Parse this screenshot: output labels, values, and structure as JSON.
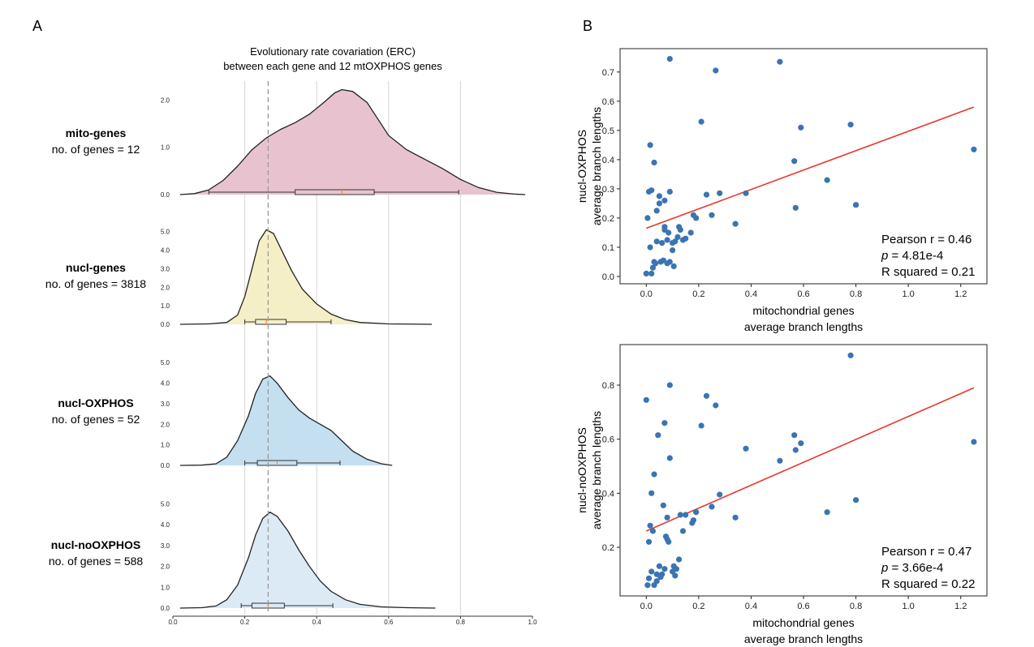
{
  "panel_a": {
    "letter": "A",
    "title_line1": "Evolutionary rate covariation (ERC)",
    "title_line2": "between each gene and 12 mtOXPHOS genes",
    "reference_line_x": 0.265
  },
  "panel_b": {
    "letter": "B"
  },
  "chart_data": [
    {
      "type": "violin",
      "title": "Evolutionary rate covariation (ERC) between each gene and 12 mtOXPHOS genes",
      "xlim": [
        0.0,
        1.0
      ],
      "x_ticks": [
        "0.0",
        "0.2",
        "0.4",
        "0.6",
        "0.8",
        "1.0"
      ],
      "x_tick_values": [
        0.0,
        0.2,
        0.4,
        0.6,
        0.8,
        1.0
      ],
      "grid_x": [
        0.2,
        0.4,
        0.6,
        0.8
      ],
      "groups": [
        {
          "name": "mito-genes",
          "count_label": "no. of genes = 12",
          "color": "#e8c3cf",
          "ylim": [
            0,
            2.4
          ],
          "y_ticks": [
            "0.0",
            "1.0",
            "2.0"
          ],
          "y_tick_values": [
            0,
            1,
            2
          ],
          "density": [
            [
              0.02,
              0
            ],
            [
              0.06,
              0.02
            ],
            [
              0.1,
              0.1
            ],
            [
              0.14,
              0.3
            ],
            [
              0.18,
              0.6
            ],
            [
              0.22,
              0.95
            ],
            [
              0.26,
              1.2
            ],
            [
              0.3,
              1.38
            ],
            [
              0.34,
              1.52
            ],
            [
              0.38,
              1.7
            ],
            [
              0.42,
              1.95
            ],
            [
              0.45,
              2.15
            ],
            [
              0.47,
              2.22
            ],
            [
              0.5,
              2.18
            ],
            [
              0.54,
              1.95
            ],
            [
              0.57,
              1.6
            ],
            [
              0.6,
              1.25
            ],
            [
              0.65,
              0.95
            ],
            [
              0.7,
              0.75
            ],
            [
              0.75,
              0.55
            ],
            [
              0.8,
              0.32
            ],
            [
              0.85,
              0.15
            ],
            [
              0.9,
              0.05
            ],
            [
              0.95,
              0.01
            ],
            [
              0.98,
              0
            ]
          ],
          "box": {
            "whisker_low": 0.1,
            "q1": 0.34,
            "median": 0.47,
            "q3": 0.56,
            "whisker_high": 0.795
          }
        },
        {
          "name": "nucl-genes",
          "count_label": "no. of genes = 3818",
          "color": "#f5efc8",
          "ylim": [
            0,
            5.6
          ],
          "y_ticks": [
            "0.0",
            "1.0",
            "2.0",
            "3.0",
            "4.0",
            "5.0"
          ],
          "y_tick_values": [
            0,
            1,
            2,
            3,
            4,
            5
          ],
          "density": [
            [
              0.02,
              0
            ],
            [
              0.1,
              0.02
            ],
            [
              0.15,
              0.1
            ],
            [
              0.18,
              0.5
            ],
            [
              0.2,
              1.5
            ],
            [
              0.22,
              3.0
            ],
            [
              0.24,
              4.5
            ],
            [
              0.26,
              5.1
            ],
            [
              0.28,
              4.9
            ],
            [
              0.3,
              4.1
            ],
            [
              0.33,
              2.9
            ],
            [
              0.36,
              1.9
            ],
            [
              0.4,
              1.1
            ],
            [
              0.44,
              0.55
            ],
            [
              0.48,
              0.25
            ],
            [
              0.52,
              0.1
            ],
            [
              0.6,
              0.02
            ],
            [
              0.72,
              0
            ]
          ],
          "box": {
            "whisker_low": 0.2,
            "q1": 0.23,
            "median": 0.26,
            "q3": 0.315,
            "whisker_high": 0.44
          }
        },
        {
          "name": "nucl-OXPHOS",
          "count_label": "no. of genes = 52",
          "color": "#c3dff0",
          "ylim": [
            0,
            5.6
          ],
          "y_ticks": [
            "0.0",
            "1.0",
            "2.0",
            "3.0",
            "4.0",
            "5.0"
          ],
          "y_tick_values": [
            0,
            1,
            2,
            3,
            4,
            5
          ],
          "density": [
            [
              0.02,
              0
            ],
            [
              0.08,
              0.01
            ],
            [
              0.12,
              0.08
            ],
            [
              0.15,
              0.4
            ],
            [
              0.18,
              1.2
            ],
            [
              0.21,
              2.4
            ],
            [
              0.23,
              3.5
            ],
            [
              0.25,
              4.2
            ],
            [
              0.27,
              4.35
            ],
            [
              0.29,
              4.0
            ],
            [
              0.32,
              3.3
            ],
            [
              0.35,
              2.7
            ],
            [
              0.38,
              2.3
            ],
            [
              0.41,
              2.0
            ],
            [
              0.44,
              1.7
            ],
            [
              0.47,
              1.2
            ],
            [
              0.5,
              0.7
            ],
            [
              0.54,
              0.3
            ],
            [
              0.58,
              0.08
            ],
            [
              0.61,
              0
            ]
          ],
          "box": {
            "whisker_low": 0.2,
            "q1": 0.235,
            "median": 0.29,
            "q3": 0.345,
            "whisker_high": 0.465
          }
        },
        {
          "name": "nucl-noOXPHOS",
          "count_label": "no. of genes = 588",
          "color": "#dceaf6",
          "ylim": [
            0,
            5.6
          ],
          "y_ticks": [
            "0.0",
            "1.0",
            "2.0",
            "3.0",
            "4.0",
            "5.0"
          ],
          "y_tick_values": [
            0,
            1,
            2,
            3,
            4,
            5
          ],
          "density": [
            [
              0.02,
              0
            ],
            [
              0.08,
              0.02
            ],
            [
              0.12,
              0.1
            ],
            [
              0.15,
              0.4
            ],
            [
              0.18,
              1.1
            ],
            [
              0.21,
              2.4
            ],
            [
              0.23,
              3.5
            ],
            [
              0.25,
              4.3
            ],
            [
              0.27,
              4.6
            ],
            [
              0.29,
              4.4
            ],
            [
              0.32,
              3.7
            ],
            [
              0.35,
              2.8
            ],
            [
              0.38,
              2.0
            ],
            [
              0.41,
              1.3
            ],
            [
              0.44,
              0.8
            ],
            [
              0.48,
              0.4
            ],
            [
              0.52,
              0.18
            ],
            [
              0.58,
              0.06
            ],
            [
              0.65,
              0.02
            ],
            [
              0.73,
              0
            ]
          ],
          "box": {
            "whisker_low": 0.19,
            "q1": 0.22,
            "median": 0.265,
            "q3": 0.31,
            "whisker_high": 0.445
          }
        }
      ]
    },
    {
      "type": "scatter",
      "xlabel_line1": "mitochondrial genes",
      "xlabel_line2": "average branch lengths",
      "ylabel_line1": "nucl-OXPHOS",
      "ylabel_line2": "average branch lengths",
      "xlim": [
        -0.1,
        1.3
      ],
      "ylim": [
        -0.025,
        0.78
      ],
      "x_ticks": [
        "0.0",
        "0.2",
        "0.4",
        "0.6",
        "0.8",
        "1.0",
        "1.2"
      ],
      "x_tick_values": [
        0,
        0.2,
        0.4,
        0.6,
        0.8,
        1.0,
        1.2
      ],
      "y_ticks": [
        "0.0",
        "0.1",
        "0.2",
        "0.3",
        "0.4",
        "0.5",
        "0.6",
        "0.7"
      ],
      "y_tick_values": [
        0,
        0.1,
        0.2,
        0.3,
        0.4,
        0.5,
        0.6,
        0.7
      ],
      "point_color": "#3a74b2",
      "line_color": "#e8372b",
      "fit_line": [
        [
          0.0,
          0.165
        ],
        [
          1.25,
          0.58
        ]
      ],
      "stat_r": "Pearson r = 0.46",
      "stat_p_prefix": "p",
      "stat_p_value": " = 4.81e-4",
      "stat_r2": "R squared = 0.21",
      "points": [
        [
          0.0,
          0.01
        ],
        [
          0.005,
          0.2
        ],
        [
          0.01,
          0.29
        ],
        [
          0.015,
          0.45
        ],
        [
          0.015,
          0.1
        ],
        [
          0.02,
          0.01
        ],
        [
          0.025,
          0.03
        ],
        [
          0.02,
          0.295
        ],
        [
          0.03,
          0.05
        ],
        [
          0.03,
          0.39
        ],
        [
          0.035,
          0.045
        ],
        [
          0.04,
          0.12
        ],
        [
          0.04,
          0.225
        ],
        [
          0.05,
          0.25
        ],
        [
          0.05,
          0.275
        ],
        [
          0.055,
          0.05
        ],
        [
          0.06,
          0.115
        ],
        [
          0.065,
          0.055
        ],
        [
          0.07,
          0.26
        ],
        [
          0.07,
          0.16
        ],
        [
          0.07,
          0.17
        ],
        [
          0.08,
          0.045
        ],
        [
          0.08,
          0.125
        ],
        [
          0.085,
          0.15
        ],
        [
          0.09,
          0.745
        ],
        [
          0.09,
          0.29
        ],
        [
          0.09,
          0.05
        ],
        [
          0.1,
          0.115
        ],
        [
          0.1,
          0.09
        ],
        [
          0.105,
          0.035
        ],
        [
          0.11,
          0.12
        ],
        [
          0.12,
          0.135
        ],
        [
          0.125,
          0.17
        ],
        [
          0.13,
          0.16
        ],
        [
          0.14,
          0.125
        ],
        [
          0.15,
          0.13
        ],
        [
          0.17,
          0.15
        ],
        [
          0.18,
          0.21
        ],
        [
          0.19,
          0.2
        ],
        [
          0.21,
          0.53
        ],
        [
          0.23,
          0.28
        ],
        [
          0.25,
          0.21
        ],
        [
          0.265,
          0.705
        ],
        [
          0.28,
          0.285
        ],
        [
          0.34,
          0.18
        ],
        [
          0.38,
          0.285
        ],
        [
          0.51,
          0.735
        ],
        [
          0.565,
          0.395
        ],
        [
          0.57,
          0.235
        ],
        [
          0.59,
          0.51
        ],
        [
          0.69,
          0.33
        ],
        [
          0.78,
          0.52
        ],
        [
          0.8,
          0.245
        ],
        [
          1.25,
          0.435
        ]
      ]
    },
    {
      "type": "scatter",
      "xlabel_line1": "mitochondrial genes",
      "xlabel_line2": "average branch lengths",
      "ylabel_line1": "nucl-noOXPHOS",
      "ylabel_line2": "average branch lengths",
      "xlim": [
        -0.1,
        1.3
      ],
      "ylim": [
        0.02,
        0.95
      ],
      "x_ticks": [
        "0.0",
        "0.2",
        "0.4",
        "0.6",
        "0.8",
        "1.0",
        "1.2"
      ],
      "x_tick_values": [
        0,
        0.2,
        0.4,
        0.6,
        0.8,
        1.0,
        1.2
      ],
      "y_ticks": [
        "0.2",
        "0.4",
        "0.6",
        "0.8"
      ],
      "y_tick_values": [
        0.2,
        0.4,
        0.6,
        0.8
      ],
      "point_color": "#3a74b2",
      "line_color": "#e8372b",
      "fit_line": [
        [
          0.0,
          0.26
        ],
        [
          1.25,
          0.79
        ]
      ],
      "stat_r": "Pearson r = 0.47",
      "stat_p_prefix": "p",
      "stat_p_value": " = 3.66e-4",
      "stat_r2": "R squared = 0.22",
      "points": [
        [
          0.0,
          0.745
        ],
        [
          0.005,
          0.06
        ],
        [
          0.01,
          0.085
        ],
        [
          0.01,
          0.22
        ],
        [
          0.015,
          0.28
        ],
        [
          0.02,
          0.4
        ],
        [
          0.02,
          0.11
        ],
        [
          0.025,
          0.26
        ],
        [
          0.03,
          0.06
        ],
        [
          0.03,
          0.47
        ],
        [
          0.04,
          0.1
        ],
        [
          0.04,
          0.075
        ],
        [
          0.045,
          0.615
        ],
        [
          0.05,
          0.13
        ],
        [
          0.055,
          0.09
        ],
        [
          0.06,
          0.1
        ],
        [
          0.065,
          0.355
        ],
        [
          0.07,
          0.12
        ],
        [
          0.07,
          0.66
        ],
        [
          0.075,
          0.24
        ],
        [
          0.08,
          0.23
        ],
        [
          0.08,
          0.31
        ],
        [
          0.085,
          0.22
        ],
        [
          0.09,
          0.8
        ],
        [
          0.09,
          0.53
        ],
        [
          0.1,
          0.11
        ],
        [
          0.105,
          0.13
        ],
        [
          0.11,
          0.095
        ],
        [
          0.115,
          0.12
        ],
        [
          0.125,
          0.155
        ],
        [
          0.13,
          0.32
        ],
        [
          0.14,
          0.26
        ],
        [
          0.15,
          0.32
        ],
        [
          0.175,
          0.29
        ],
        [
          0.18,
          0.3
        ],
        [
          0.19,
          0.33
        ],
        [
          0.21,
          0.65
        ],
        [
          0.23,
          0.76
        ],
        [
          0.25,
          0.35
        ],
        [
          0.265,
          0.725
        ],
        [
          0.28,
          0.395
        ],
        [
          0.34,
          0.31
        ],
        [
          0.38,
          0.565
        ],
        [
          0.51,
          0.52
        ],
        [
          0.565,
          0.615
        ],
        [
          0.57,
          0.56
        ],
        [
          0.59,
          0.585
        ],
        [
          0.69,
          0.33
        ],
        [
          0.78,
          0.91
        ],
        [
          0.8,
          0.375
        ],
        [
          1.25,
          0.59
        ]
      ]
    }
  ]
}
